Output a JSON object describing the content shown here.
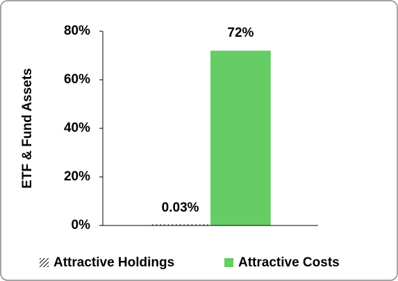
{
  "chart_data": {
    "type": "bar",
    "y_label": "ETF & Fund Assets",
    "categories": [
      null
    ],
    "series": [
      {
        "name": "Attractive Holdings",
        "color": "#000000",
        "hatch": true,
        "values": [
          0.03
        ],
        "value_labels": [
          "0.03%"
        ]
      },
      {
        "name": "Attractive Costs",
        "color": "#66cc66",
        "hatch": false,
        "values": [
          72
        ],
        "value_labels": [
          "72%"
        ]
      }
    ],
    "ylim": [
      0,
      80
    ],
    "yticks": [
      {
        "value": 0,
        "label": "0%"
      },
      {
        "value": 20,
        "label": "20%"
      },
      {
        "value": 40,
        "label": "40%"
      },
      {
        "value": 60,
        "label": "60%"
      },
      {
        "value": 80,
        "label": "80%"
      }
    ],
    "grid": false,
    "legend": "bottom"
  }
}
